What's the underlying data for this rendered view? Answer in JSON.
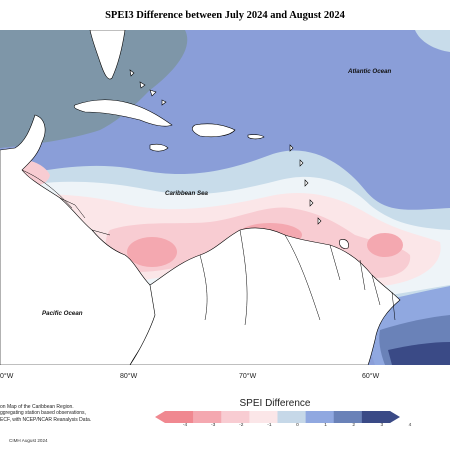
{
  "title": "SPEI3 Difference between July 2024 and August 2024",
  "labels": {
    "atlantic": "Atlantic Ocean",
    "caribbean": "Caribbean Sea",
    "pacific": "Pacific Ocean"
  },
  "longitude_ticks": [
    "0°W",
    "80°W",
    "70°W",
    "60°W"
  ],
  "note_lines": [
    "on Map of the Caribbean Region.",
    "ggregating station based observations,",
    "ECF, with NCEP/NCAR Reanalysis Data."
  ],
  "footer": "CIMH August 2024",
  "legend": {
    "title": "SPEI Difference",
    "ticks": [
      "-4",
      "-3",
      "-2",
      "-1",
      "0",
      "1",
      "2",
      "3",
      "4"
    ],
    "colors": [
      "#f08890",
      "#f4a8b0",
      "#f8ccd2",
      "#fbe6e8",
      "#eef4f8",
      "#c6d8e8",
      "#90a8e0",
      "#6a82b8",
      "#3a4a86"
    ]
  },
  "colors": {
    "land": "#ffffff",
    "sea_dark": "#7e96a8",
    "sea_mid": "#8a9ed8",
    "sea_light": "#c8dcea",
    "coastline": "#000000"
  }
}
